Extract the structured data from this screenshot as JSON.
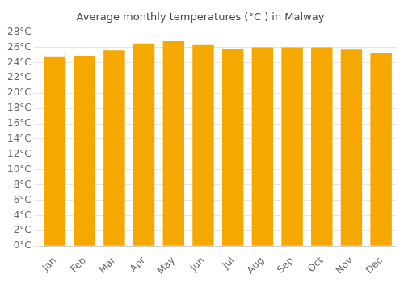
{
  "chart_data": {
    "type": "bar",
    "title": "Average monthly temperatures (°C ) in Malway",
    "categories": [
      "Jan",
      "Feb",
      "Mar",
      "Apr",
      "May",
      "Jun",
      "Jul",
      "Aug",
      "Sep",
      "Oct",
      "Nov",
      "Dec"
    ],
    "values": [
      24.8,
      24.9,
      25.6,
      26.5,
      26.8,
      26.3,
      25.8,
      26.0,
      26.0,
      26.0,
      25.7,
      25.3
    ],
    "color": "#F5A800",
    "ylim": [
      0,
      28
    ],
    "yticks": [
      {
        "value": 0,
        "label": "0°C"
      },
      {
        "value": 2,
        "label": "2°C"
      },
      {
        "value": 4,
        "label": "4°C"
      },
      {
        "value": 6,
        "label": "6°C"
      },
      {
        "value": 8,
        "label": "8°C"
      },
      {
        "value": 10,
        "label": "10°C"
      },
      {
        "value": 12,
        "label": "12°C"
      },
      {
        "value": 14,
        "label": "14°C"
      },
      {
        "value": 16,
        "label": "16°C"
      },
      {
        "value": 18,
        "label": "18°C"
      },
      {
        "value": 20,
        "label": "20°C"
      },
      {
        "value": 22,
        "label": "22°C"
      },
      {
        "value": 24,
        "label": "24°C"
      },
      {
        "value": 26,
        "label": "26°C"
      },
      {
        "value": 28,
        "label": "28°C"
      }
    ],
    "grid": true
  }
}
